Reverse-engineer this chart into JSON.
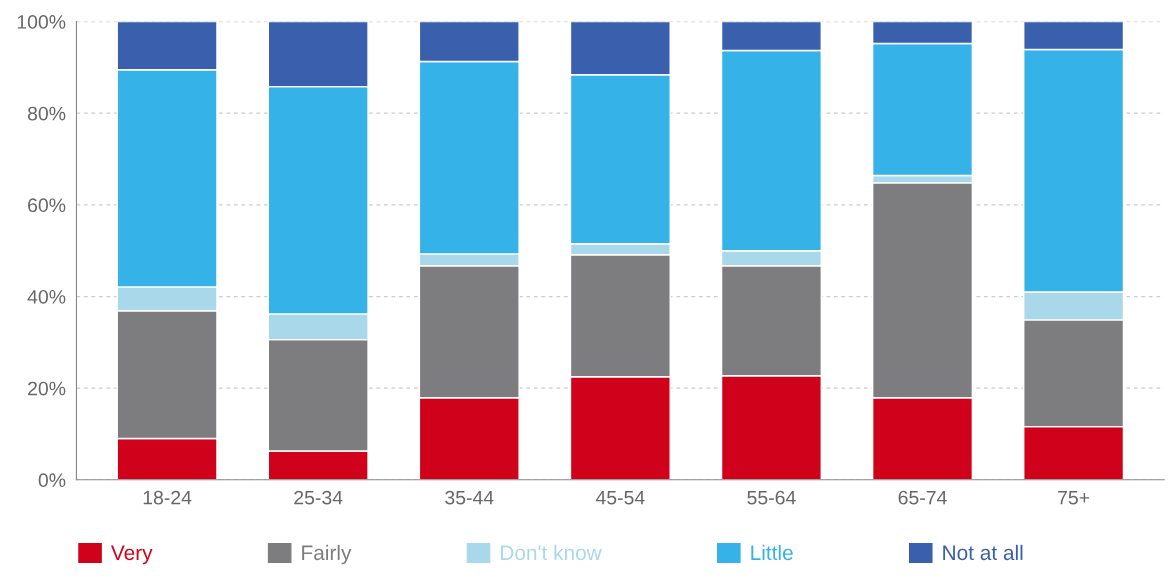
{
  "chart_data": {
    "type": "bar",
    "stacked": true,
    "categories": [
      "18-24",
      "25-34",
      "35-44",
      "45-54",
      "55-64",
      "65-74",
      "75+"
    ],
    "series": [
      {
        "name": "Very",
        "color": "#d0021b",
        "values": [
          9.0,
          6.3,
          17.9,
          22.5,
          22.7,
          17.9,
          11.6
        ]
      },
      {
        "name": "Fairly",
        "color": "#7d7d7f",
        "values": [
          27.9,
          24.3,
          28.8,
          26.6,
          24.0,
          46.9,
          23.3
        ]
      },
      {
        "name": "Don't know",
        "color": "#a8d8ea",
        "values": [
          5.2,
          5.6,
          2.6,
          2.4,
          3.3,
          1.6,
          6.1
        ]
      },
      {
        "name": "Little",
        "color": "#35b2e7",
        "values": [
          47.4,
          49.6,
          42.0,
          36.9,
          43.7,
          28.8,
          52.9
        ]
      },
      {
        "name": "Not at all",
        "color": "#3a5fad",
        "values": [
          10.5,
          14.2,
          8.7,
          11.6,
          6.3,
          4.8,
          6.1
        ]
      }
    ],
    "ylim": [
      0,
      100
    ],
    "yticks": [
      {
        "value": 0,
        "label": "0%"
      },
      {
        "value": 20,
        "label": "20%"
      },
      {
        "value": 40,
        "label": "40%"
      },
      {
        "value": 60,
        "label": "60%"
      },
      {
        "value": 80,
        "label": "80%"
      },
      {
        "value": 100,
        "label": "100%"
      }
    ],
    "grid": "y",
    "legend": "bottom"
  }
}
